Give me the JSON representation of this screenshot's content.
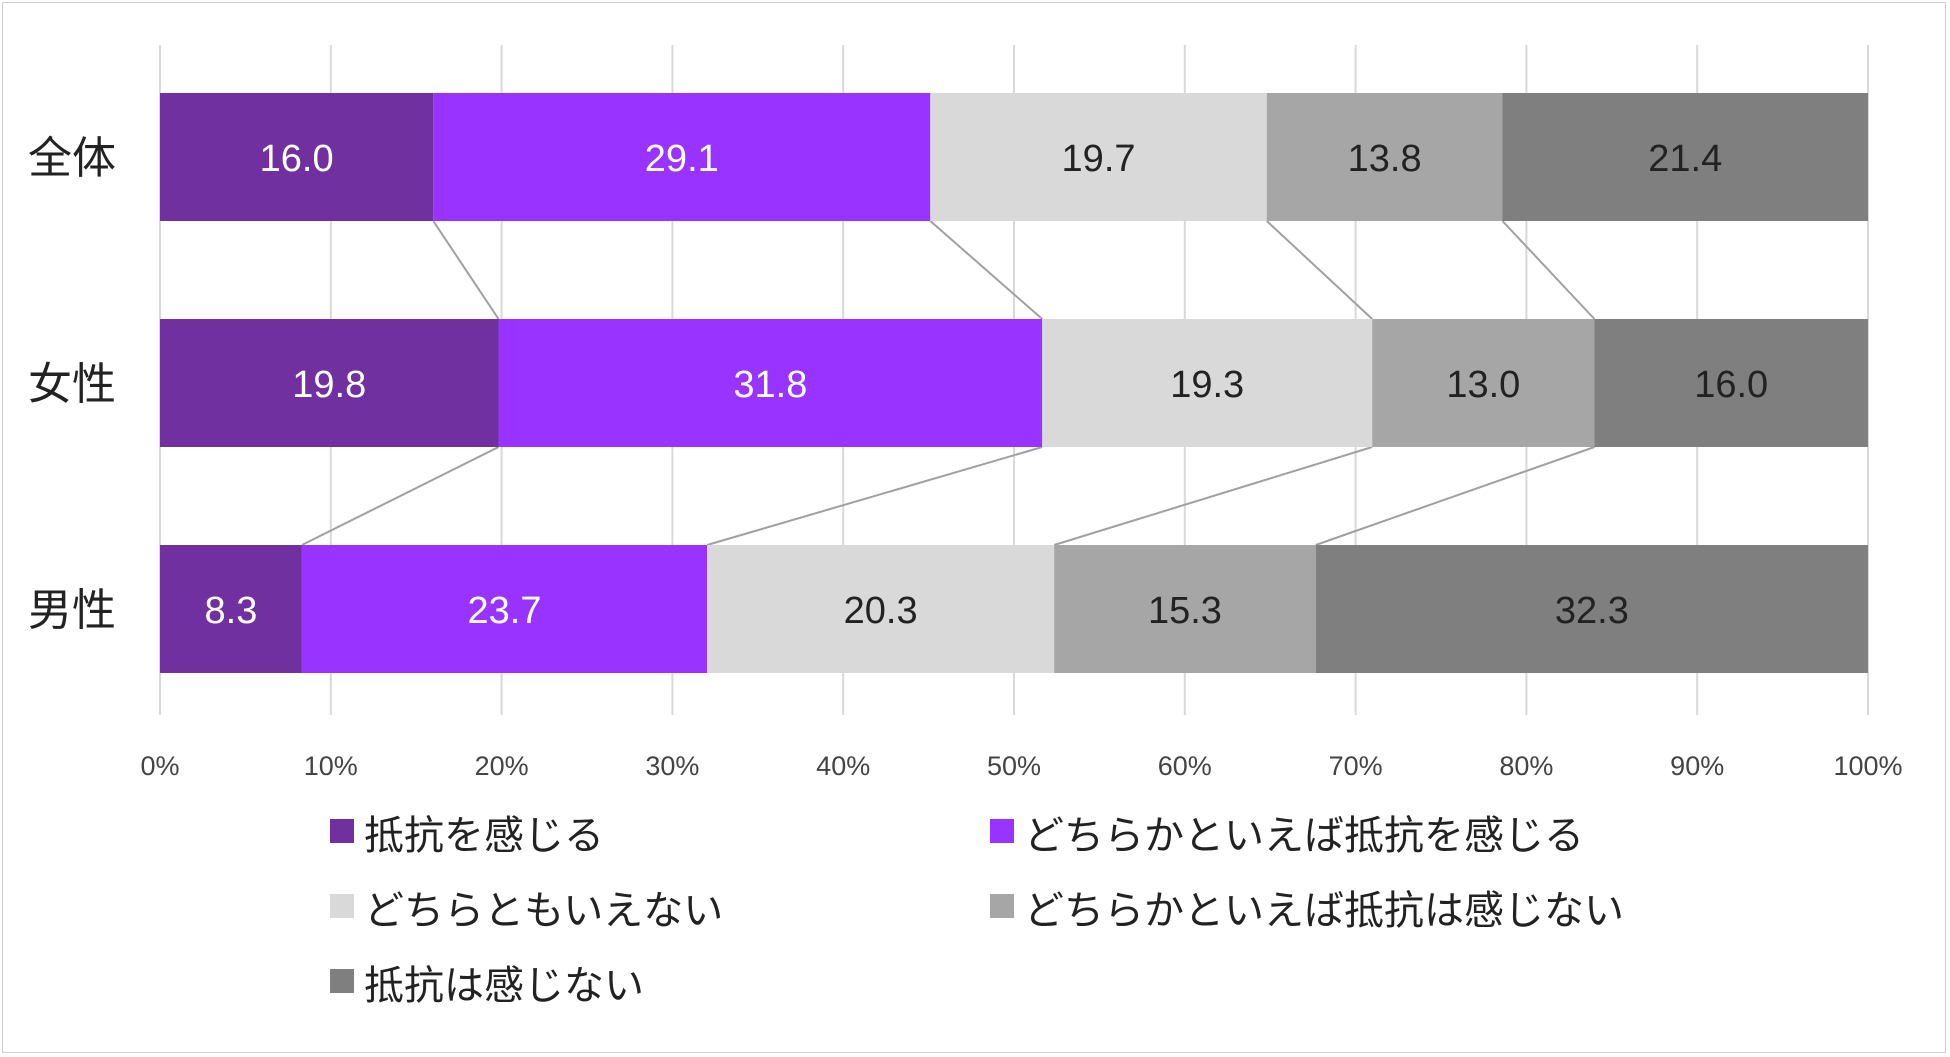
{
  "chart_data": {
    "type": "bar",
    "orientation": "horizontal",
    "stacked": "percent",
    "categories": [
      "全体",
      "女性",
      "男性"
    ],
    "series": [
      {
        "name": "抵抗を感じる",
        "values": [
          16.0,
          19.8,
          8.3
        ],
        "color": "#7030a0",
        "label_color": "#ffffff"
      },
      {
        "name": "どちらかといえば抵抗を感じる",
        "values": [
          29.1,
          31.8,
          23.7
        ],
        "color": "#9933ff",
        "label_color": "#ffffff"
      },
      {
        "name": "どちらともいえない",
        "values": [
          19.7,
          19.3,
          20.3
        ],
        "color": "#d9d9d9",
        "label_color": "#222222"
      },
      {
        "name": "どちらかといえば抵抗は感じない",
        "values": [
          13.8,
          13.0,
          15.3
        ],
        "color": "#a6a6a6",
        "label_color": "#222222"
      },
      {
        "name": "抵抗は感じない",
        "values": [
          21.4,
          16.0,
          32.3
        ],
        "color": "#7f7f7f",
        "label_color": "#222222"
      }
    ],
    "data_labels": [
      [
        "16.0",
        "29.1",
        "19.7",
        "13.8",
        "21.4"
      ],
      [
        "19.8",
        "31.8",
        "19.3",
        "13.0",
        "16.0"
      ],
      [
        "8.3",
        "23.7",
        "20.3",
        "15.3",
        "32.3"
      ]
    ],
    "x_ticks": [
      "0%",
      "10%",
      "20%",
      "30%",
      "40%",
      "50%",
      "60%",
      "70%",
      "80%",
      "90%",
      "100%"
    ],
    "xlim": [
      0,
      100
    ],
    "grid": "vertical",
    "series_lines": true,
    "legend_position": "bottom",
    "gridline_color": "#d9d9d9",
    "series_line_color": "#a0a0a0"
  }
}
